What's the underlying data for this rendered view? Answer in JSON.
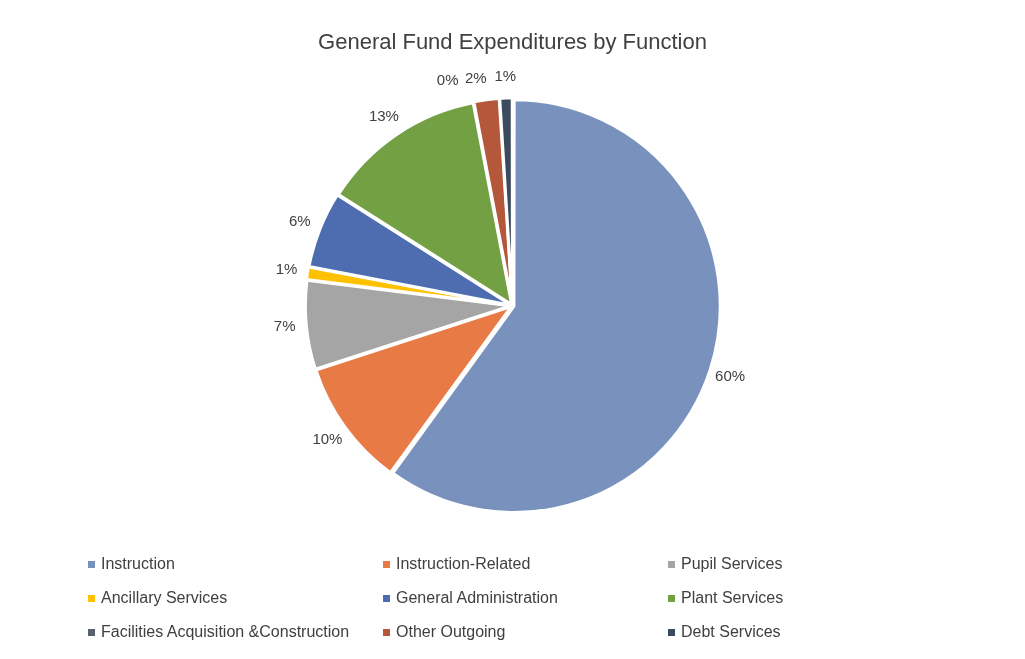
{
  "chart_data": {
    "type": "pie",
    "title": "General Fund Expenditures by Function",
    "categories": [
      "Instruction",
      "Instruction-Related",
      "Pupil Services",
      "Ancillary Services",
      "General Administration",
      "Plant Services",
      "Facilities Acquisition &Construction",
      "Other Outgoing",
      "Debt Services"
    ],
    "values": [
      60,
      10,
      7,
      1,
      6,
      13,
      0,
      2,
      1
    ],
    "colors": [
      "#7891bd",
      "#e87a45",
      "#a5a5a5",
      "#ffc000",
      "#4d6db0",
      "#72a043",
      "#5a6068",
      "#b5573a",
      "#3b4a5c"
    ],
    "value_labels": [
      "60%",
      "10%",
      "7%",
      "1%",
      "6%",
      "13%",
      "0%",
      "2%",
      "1%"
    ],
    "legend": "bottom"
  }
}
